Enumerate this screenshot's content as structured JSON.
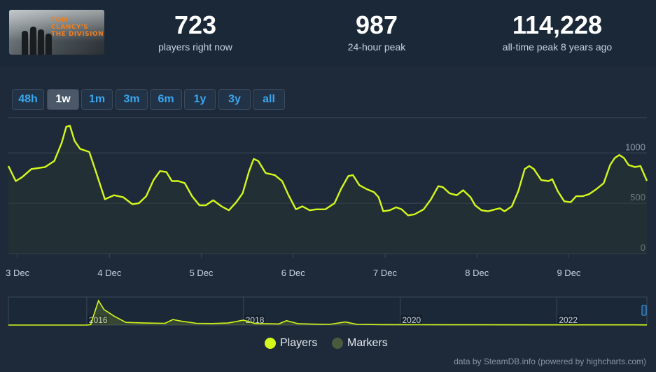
{
  "header": {
    "game_logo": "TOM CLANCY'S THE DIVISION",
    "stats": [
      {
        "value": "723",
        "label": "players right now"
      },
      {
        "value": "987",
        "label": "24-hour peak"
      },
      {
        "value": "114,228",
        "label": "all-time peak 8 years ago"
      }
    ]
  },
  "range_buttons": [
    {
      "label": "48h",
      "active": false
    },
    {
      "label": "1w",
      "active": true
    },
    {
      "label": "1m",
      "active": false
    },
    {
      "label": "3m",
      "active": false
    },
    {
      "label": "6m",
      "active": false
    },
    {
      "label": "1y",
      "active": false
    },
    {
      "label": "3y",
      "active": false
    },
    {
      "label": "all",
      "active": false
    }
  ],
  "legend": {
    "players": "Players",
    "markers": "Markers"
  },
  "credits": "data by SteamDB.info (powered by highcharts.com)",
  "colors": {
    "series": "#d4f81c",
    "markers": "#4a5a3e",
    "background": "#1b2838",
    "accent": "#39a8f0"
  },
  "chart_data": [
    {
      "type": "line",
      "title": "",
      "series": [
        {
          "name": "Players",
          "color": "#d4f81c"
        }
      ],
      "x_ticks": [
        "3 Dec",
        "4 Dec",
        "5 Dec",
        "6 Dec",
        "7 Dec",
        "8 Dec",
        "9 Dec"
      ],
      "y_ticks": [
        "0",
        "500",
        "1000"
      ],
      "ylim": [
        0,
        1000
      ],
      "x_range_days": [
        2.9,
        9.85
      ],
      "grid": true,
      "points": [
        [
          2.9,
          870
        ],
        [
          2.98,
          720
        ],
        [
          3.05,
          760
        ],
        [
          3.15,
          840
        ],
        [
          3.3,
          860
        ],
        [
          3.4,
          920
        ],
        [
          3.48,
          1100
        ],
        [
          3.53,
          1260
        ],
        [
          3.57,
          1270
        ],
        [
          3.62,
          1120
        ],
        [
          3.68,
          1040
        ],
        [
          3.78,
          1010
        ],
        [
          3.85,
          820
        ],
        [
          3.95,
          540
        ],
        [
          4.05,
          580
        ],
        [
          4.15,
          560
        ],
        [
          4.25,
          490
        ],
        [
          4.32,
          500
        ],
        [
          4.4,
          570
        ],
        [
          4.48,
          730
        ],
        [
          4.55,
          820
        ],
        [
          4.62,
          810
        ],
        [
          4.68,
          720
        ],
        [
          4.75,
          720
        ],
        [
          4.82,
          700
        ],
        [
          4.9,
          570
        ],
        [
          4.98,
          480
        ],
        [
          5.05,
          480
        ],
        [
          5.13,
          530
        ],
        [
          5.22,
          470
        ],
        [
          5.3,
          430
        ],
        [
          5.38,
          510
        ],
        [
          5.45,
          600
        ],
        [
          5.52,
          820
        ],
        [
          5.57,
          940
        ],
        [
          5.62,
          920
        ],
        [
          5.7,
          800
        ],
        [
          5.8,
          780
        ],
        [
          5.88,
          720
        ],
        [
          5.95,
          580
        ],
        [
          6.03,
          440
        ],
        [
          6.1,
          470
        ],
        [
          6.18,
          430
        ],
        [
          6.25,
          440
        ],
        [
          6.35,
          440
        ],
        [
          6.45,
          500
        ],
        [
          6.52,
          640
        ],
        [
          6.6,
          770
        ],
        [
          6.65,
          780
        ],
        [
          6.72,
          680
        ],
        [
          6.8,
          640
        ],
        [
          6.88,
          610
        ],
        [
          6.93,
          560
        ],
        [
          6.98,
          420
        ],
        [
          7.05,
          430
        ],
        [
          7.12,
          460
        ],
        [
          7.18,
          440
        ],
        [
          7.25,
          380
        ],
        [
          7.32,
          390
        ],
        [
          7.42,
          440
        ],
        [
          7.5,
          540
        ],
        [
          7.58,
          670
        ],
        [
          7.63,
          660
        ],
        [
          7.7,
          600
        ],
        [
          7.78,
          580
        ],
        [
          7.85,
          630
        ],
        [
          7.93,
          560
        ],
        [
          7.98,
          480
        ],
        [
          8.05,
          430
        ],
        [
          8.12,
          420
        ],
        [
          8.2,
          440
        ],
        [
          8.25,
          450
        ],
        [
          8.3,
          420
        ],
        [
          8.38,
          470
        ],
        [
          8.45,
          620
        ],
        [
          8.52,
          840
        ],
        [
          8.57,
          870
        ],
        [
          8.62,
          840
        ],
        [
          8.7,
          730
        ],
        [
          8.78,
          720
        ],
        [
          8.82,
          740
        ],
        [
          8.88,
          620
        ],
        [
          8.95,
          520
        ],
        [
          9.02,
          510
        ],
        [
          9.08,
          570
        ],
        [
          9.15,
          570
        ],
        [
          9.22,
          590
        ],
        [
          9.3,
          640
        ],
        [
          9.38,
          700
        ],
        [
          9.45,
          880
        ],
        [
          9.5,
          950
        ],
        [
          9.55,
          980
        ],
        [
          9.6,
          950
        ],
        [
          9.65,
          880
        ],
        [
          9.72,
          860
        ],
        [
          9.78,
          870
        ],
        [
          9.85,
          723
        ]
      ]
    },
    {
      "type": "area",
      "title": "",
      "series": [
        {
          "name": "Players (all time)",
          "color": "#d4f81c"
        }
      ],
      "x_ticks": [
        "2016",
        "2018",
        "2020",
        "2022"
      ],
      "x_range_years": [
        2015.0,
        2023.15
      ],
      "ylim": [
        0,
        114228
      ],
      "points": [
        [
          2015.0,
          0
        ],
        [
          2016.0,
          0
        ],
        [
          2016.05,
          2000
        ],
        [
          2016.15,
          110000
        ],
        [
          2016.22,
          70000
        ],
        [
          2016.35,
          40000
        ],
        [
          2016.5,
          12000
        ],
        [
          2016.75,
          9000
        ],
        [
          2017.0,
          8000
        ],
        [
          2017.1,
          25000
        ],
        [
          2017.2,
          18000
        ],
        [
          2017.4,
          8000
        ],
        [
          2017.6,
          7000
        ],
        [
          2017.8,
          9000
        ],
        [
          2017.85,
          12000
        ],
        [
          2018.0,
          22000
        ],
        [
          2018.15,
          7000
        ],
        [
          2018.3,
          6000
        ],
        [
          2018.45,
          5000
        ],
        [
          2018.55,
          20000
        ],
        [
          2018.7,
          6000
        ],
        [
          2018.9,
          4000
        ],
        [
          2019.1,
          3000
        ],
        [
          2019.3,
          14000
        ],
        [
          2019.45,
          3000
        ],
        [
          2019.8,
          2000
        ],
        [
          2020.2,
          1500
        ],
        [
          2021.0,
          1200
        ],
        [
          2022.0,
          1000
        ],
        [
          2023.0,
          900
        ],
        [
          2023.15,
          723
        ]
      ]
    }
  ]
}
